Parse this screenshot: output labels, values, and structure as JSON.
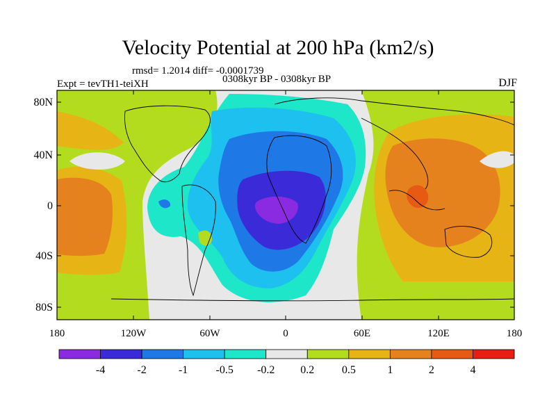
{
  "header": {
    "title": "Velocity Potential at 200 hPa (km2/s)",
    "stats": "rmsd= 1.2014 diff= -0.0001739",
    "experiment": "Expt = tevTH1-teiXH",
    "period": "0308kyr BP - 0308kyr BP",
    "season": "DJF"
  },
  "axes": {
    "lat_ticks": [
      "80N",
      "40N",
      "0",
      "40S",
      "80S"
    ],
    "lon_ticks": [
      "180",
      "120W",
      "60W",
      "0",
      "60E",
      "120E",
      "180"
    ]
  },
  "colorbar": {
    "colors": [
      "#8a2be2",
      "#3a2ad8",
      "#1e78e6",
      "#1ec0f0",
      "#1ee6c8",
      "#e8e8e8",
      "#b4dc1e",
      "#e6b414",
      "#e6821e",
      "#e65a14",
      "#e61e14"
    ],
    "labels": [
      "-4",
      "-2",
      "-1",
      "-0.5",
      "-0.2",
      "0.2",
      "0.5",
      "1",
      "2",
      "4"
    ]
  }
}
